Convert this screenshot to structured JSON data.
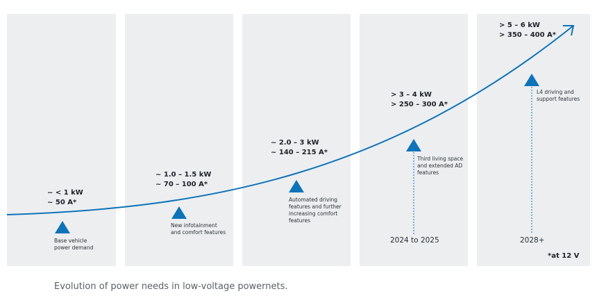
{
  "stages": [
    {
      "power_kw": "~ < 1 kW",
      "current": "~ 50 A*",
      "feature_lines": [
        "Base vehicle",
        "power demand"
      ],
      "year": ""
    },
    {
      "power_kw": "~ 1.0 – 1.5 kW",
      "current": "~ 70 – 100 A*",
      "feature_lines": [
        "New infotainment",
        "and comfort features"
      ],
      "year": ""
    },
    {
      "power_kw": "~ 2.0 – 3 kW",
      "current": "~ 140 – 215 A*",
      "feature_lines": [
        "Automated driving",
        "features and further",
        "increasing comfort",
        "features"
      ],
      "year": ""
    },
    {
      "power_kw": "> 3 – 4 kW",
      "current": "> 250 – 300 A*",
      "feature_lines": [
        "Third living space",
        "and extended AD",
        "features"
      ],
      "year": "2024 to 2025"
    },
    {
      "power_kw": "> 5 – 6 kW",
      "current": "> 350 – 400 A*",
      "feature_lines": [
        "L4 driving and",
        "support features"
      ],
      "year": "2028+"
    }
  ],
  "footnote": "*at 12 V",
  "caption": "Evolution of power needs in low-voltage powernets.",
  "colors": {
    "panel": "#eceef0",
    "accent": "#0e73b8",
    "text": "#1f2329"
  }
}
